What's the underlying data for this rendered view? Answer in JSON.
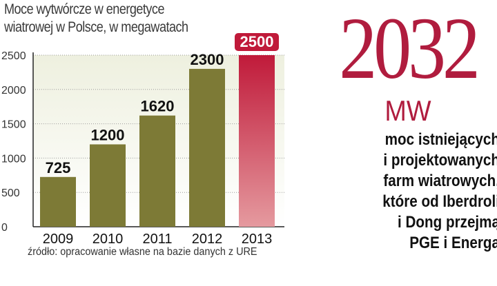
{
  "chart_data": {
    "type": "bar",
    "title": "Moce wytwórcze w energetyce",
    "subtitle": "wiatrowej w Polsce, w megawatach",
    "categories": [
      "2009",
      "2010",
      "2011",
      "2012",
      "2013"
    ],
    "values": [
      725,
      1200,
      1620,
      2300,
      2500
    ],
    "value_labels": [
      "725",
      "1200",
      "1620",
      "2300",
      "2500"
    ],
    "y_ticks": [
      "0",
      "500",
      "1000",
      "1500",
      "2000",
      "2500"
    ],
    "ylim": [
      0,
      2500
    ],
    "grid": true,
    "legend": "none",
    "colors": {
      "bar": "#7d7a36",
      "bar_highlight": "#c8434f",
      "label_highlight_bg": "#c01a3a",
      "background_gradient_top": "#eef0df",
      "background_gradient_bottom": "#ffffff"
    }
  },
  "source": "źródło: opracowanie własne na bazie danych z URE",
  "callout": {
    "number": "2032",
    "unit": "MW",
    "lines": [
      "moc istniejących",
      "i projektowanych",
      "farm wiatrowych,",
      "które od Iberdroli",
      "i Dong przejmą",
      "PGE i Energa"
    ]
  }
}
